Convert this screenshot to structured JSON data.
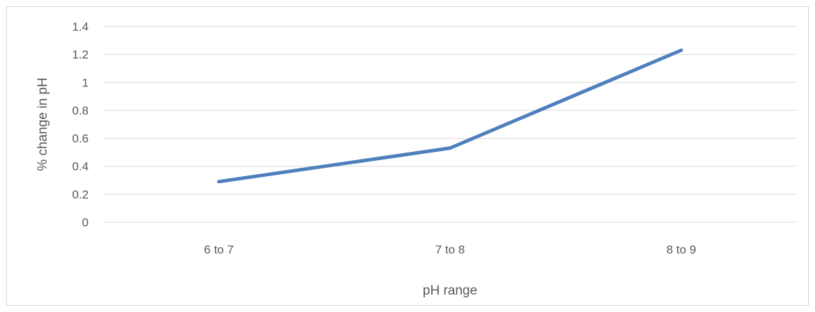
{
  "chart_data": {
    "type": "line",
    "title": "",
    "xlabel": "pH range",
    "ylabel": "% change in pH",
    "categories": [
      "6 to 7",
      "7 to 8",
      "8 to 9"
    ],
    "series": [
      {
        "values": [
          0.29,
          0.53,
          1.23
        ],
        "color": "#4f7fbc"
      }
    ],
    "ylim": [
      0,
      1.4
    ],
    "yticks": [
      0,
      0.2,
      0.4,
      0.6,
      0.8,
      1,
      1.2,
      1.4
    ],
    "ytick_labels": [
      "0",
      "0.2",
      "0.4",
      "0.6",
      "0.8",
      "1",
      "1.2",
      "1.4"
    ],
    "grid": true,
    "legend": "none",
    "gridline_color": "#d9d9d9"
  }
}
